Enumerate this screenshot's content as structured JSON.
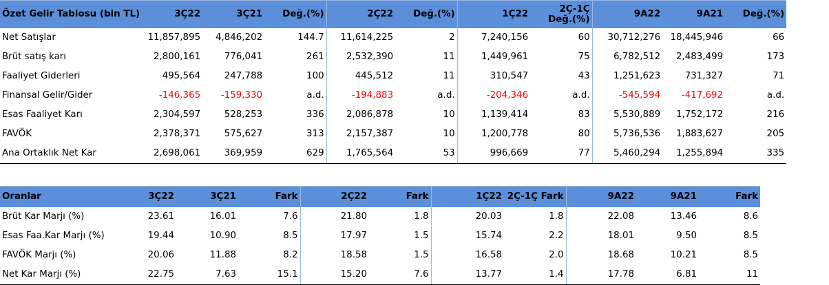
{
  "income": {
    "header": [
      "Özet Gelir Tablosu (bin TL)",
      "3Ç22",
      "3Ç21",
      "Değ.(%)",
      "2Ç22",
      "Değ.(%)",
      "1Ç22",
      "2Ç-1Ç Değ.(%)",
      "9A22",
      "9A21",
      "Değ.(%)"
    ],
    "rows": [
      {
        "label": "Net Satışlar",
        "cells": [
          "11,857,895",
          "4,846,202",
          "144.7",
          "11,614,225",
          "2",
          "7,240,156",
          "60",
          "30,712,276",
          "18,445,946",
          "66"
        ]
      },
      {
        "label": "Brüt satış karı",
        "cells": [
          "2,800,161",
          "776,041",
          "261",
          "2,532,390",
          "11",
          "1,449,961",
          "75",
          "6,782,512",
          "2,483,499",
          "173"
        ]
      },
      {
        "label": "Faaliyet Giderleri",
        "cells": [
          "495,564",
          "247,788",
          "100",
          "445,512",
          "11",
          "310,547",
          "43",
          "1,251,623",
          "731,327",
          "71"
        ]
      },
      {
        "label": "Finansal Gelir/Gider",
        "cells": [
          "-146,365",
          "-159,330",
          "a.d.",
          "-194,883",
          "a.d.",
          "-204,346",
          "a.d.",
          "-545,594",
          "-417,692",
          "a.d."
        ]
      },
      {
        "label": "Esas Faaliyet Karı",
        "cells": [
          "2,304,597",
          "528,253",
          "336",
          "2,086,878",
          "10",
          "1,139,414",
          "83",
          "5,530,889",
          "1,752,172",
          "216"
        ]
      },
      {
        "label": "FAVÖK",
        "cells": [
          "2,378,371",
          "575,627",
          "313",
          "2,157,387",
          "10",
          "1,200,778",
          "80",
          "5,736,536",
          "1,883,627",
          "205"
        ]
      },
      {
        "label": "Ana Ortaklık Net Kar",
        "cells": [
          "2,698,061",
          "369,959",
          "629",
          "1,765,564",
          "53",
          "996,669",
          "77",
          "5,460,294",
          "1,255,894",
          "335"
        ]
      }
    ]
  },
  "ratios": {
    "header": [
      "Oranlar",
      "3Ç22",
      "3Ç21",
      "Fark",
      "2Ç22",
      "Fark",
      "1Ç22",
      "2Ç-1Ç Fark",
      "9A22",
      "9A21",
      "Fark"
    ],
    "rows": [
      {
        "label": "Brüt Kar Marjı (%)",
        "cells": [
          "23.61",
          "16.01",
          "7.6",
          "21.80",
          "1.8",
          "20.03",
          "1.8",
          "22.08",
          "13.46",
          "8.6"
        ]
      },
      {
        "label": "Esas Faa.Kar Marjı (%)",
        "cells": [
          "19.44",
          "10.90",
          "8.5",
          "17.97",
          "1.5",
          "15.74",
          "2.2",
          "18.01",
          "9.50",
          "8.5"
        ]
      },
      {
        "label": "FAVÖK Marjı (%)",
        "cells": [
          "20.06",
          "11.88",
          "8.2",
          "18.58",
          "1.5",
          "16.58",
          "2.0",
          "18.68",
          "10.21",
          "8.5"
        ]
      },
      {
        "label": "Net Kar Marjı (%)",
        "cells": [
          "22.75",
          "7.63",
          "15.1",
          "15.20",
          "7.6",
          "13.77",
          "1.4",
          "17.78",
          "6.81",
          "11"
        ]
      }
    ]
  },
  "colors": {
    "header_bg": "#5b8fd9",
    "negative": "#ff0000"
  }
}
